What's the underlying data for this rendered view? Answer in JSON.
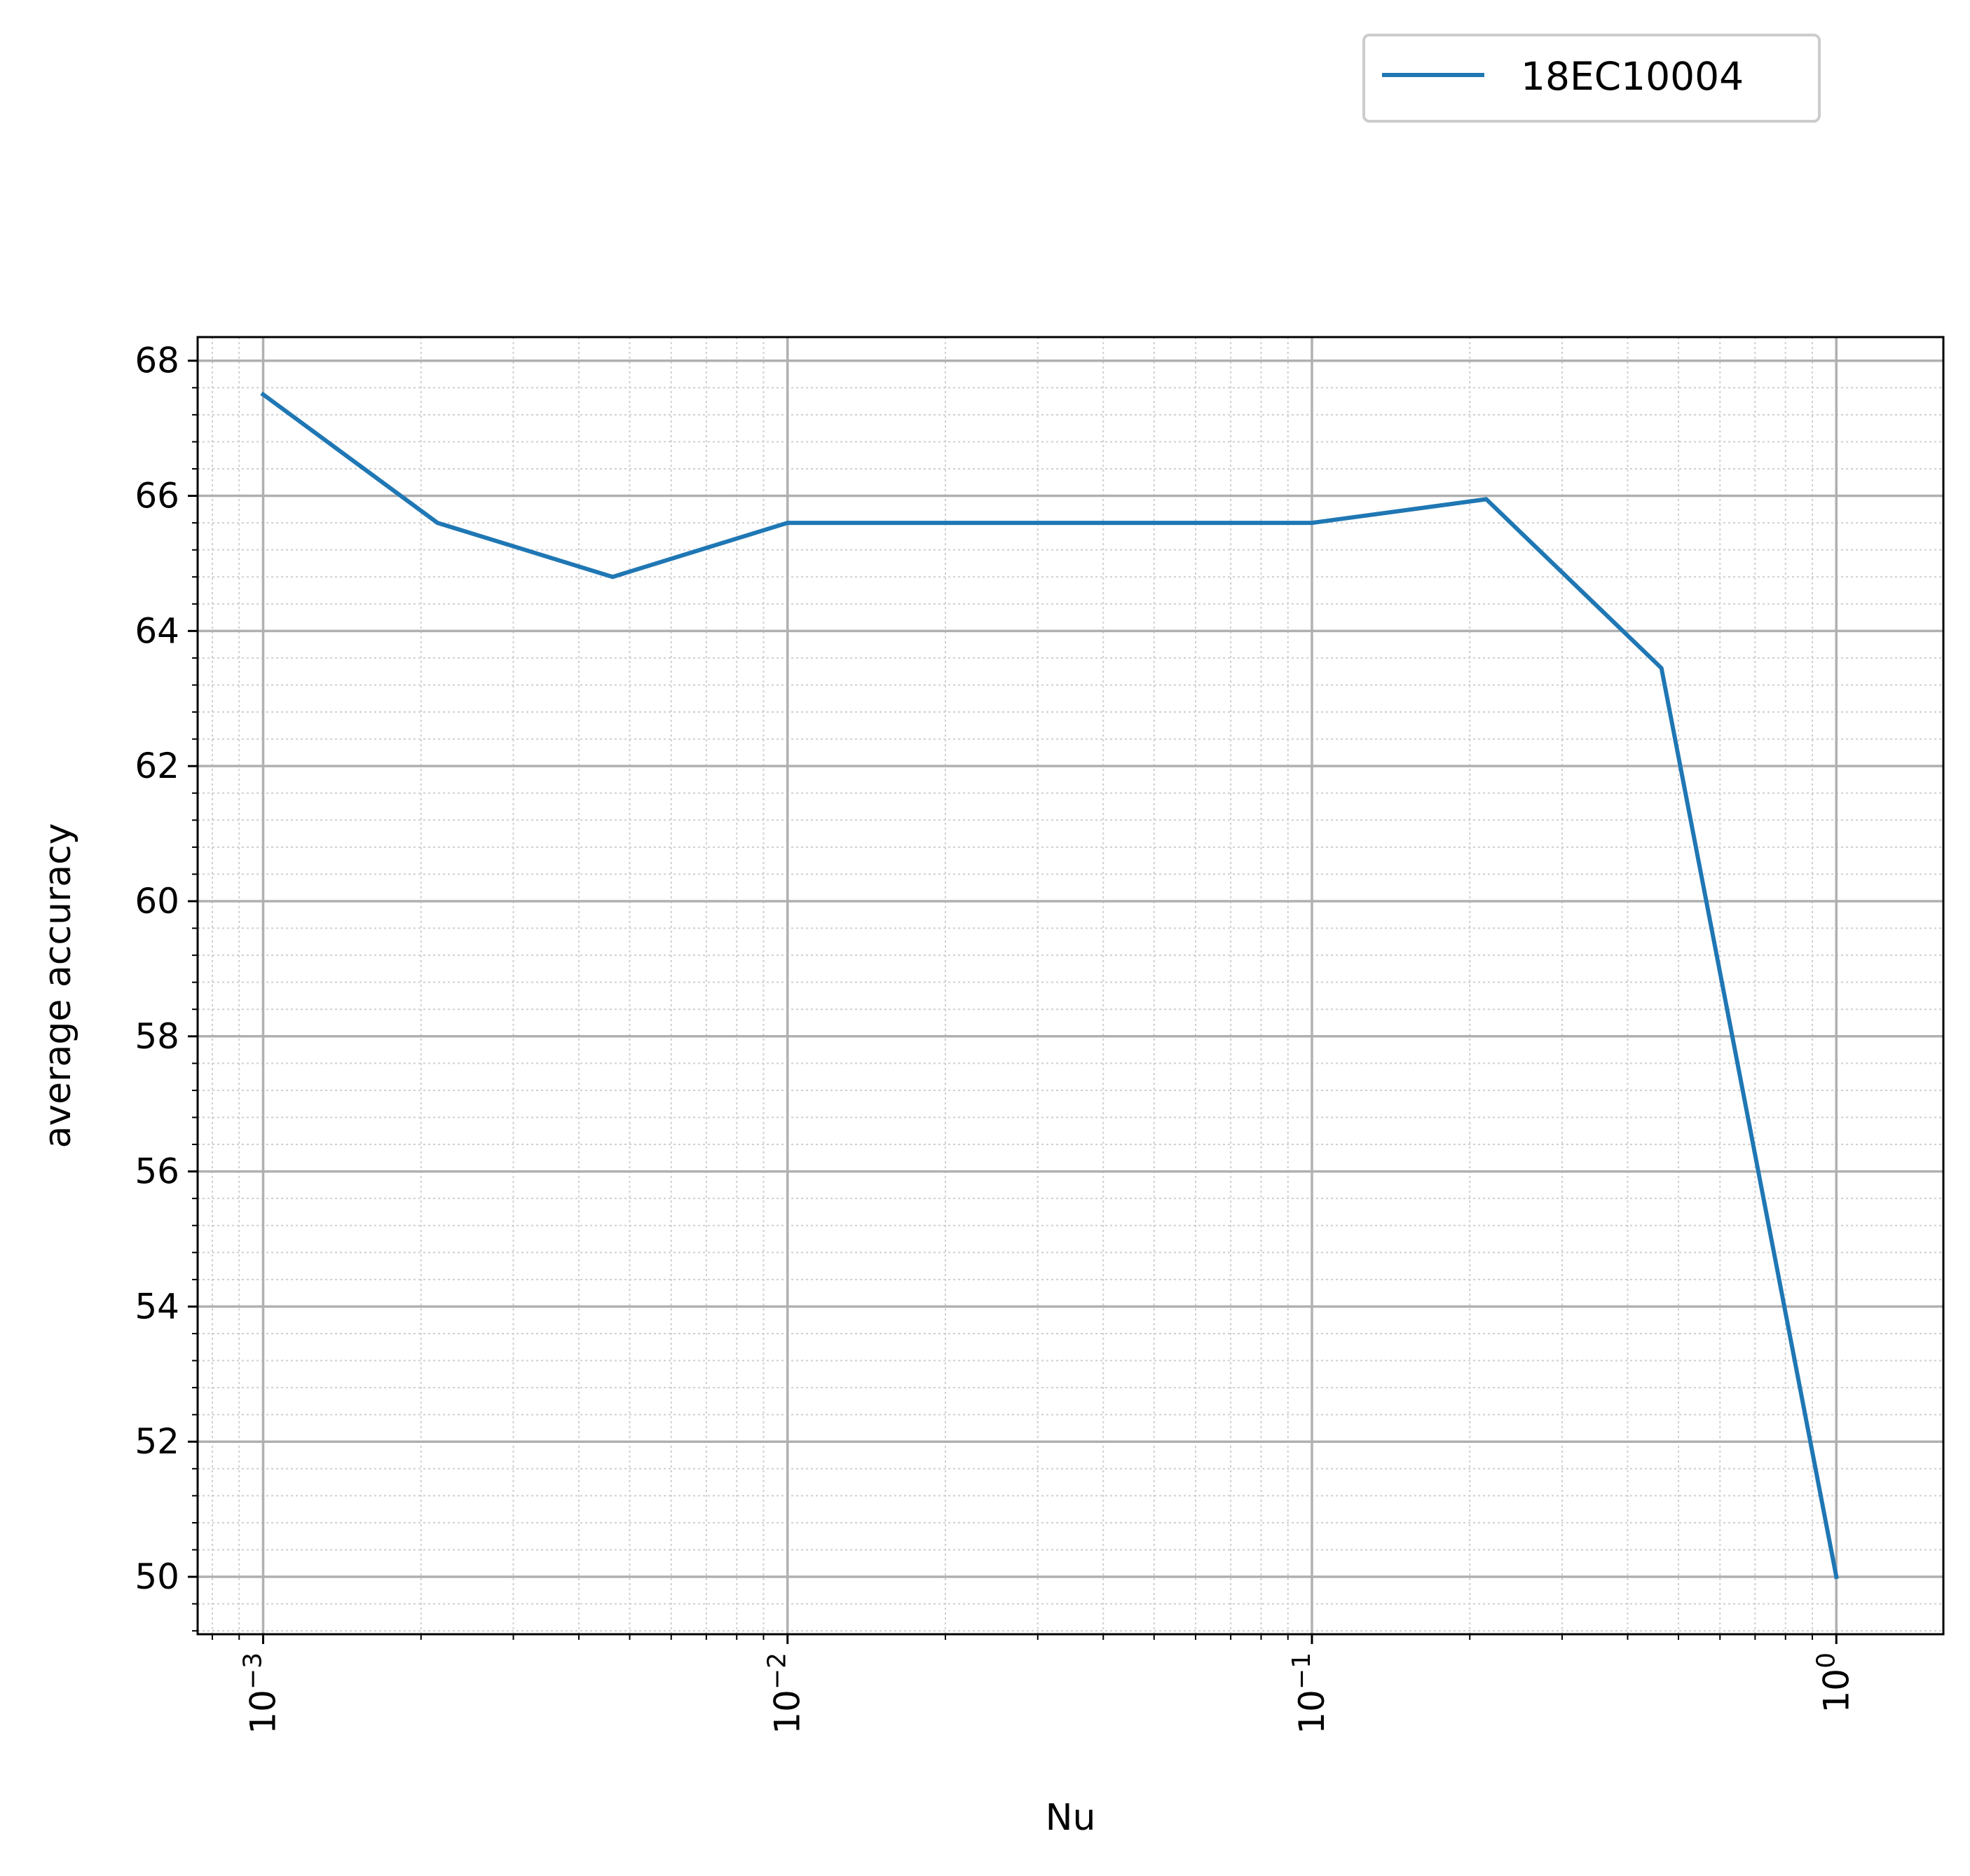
{
  "chart_data": {
    "type": "line",
    "title": "",
    "xlabel": "Nu",
    "ylabel": "average accuracy",
    "xscale": "log",
    "xlim": [
      0.00075,
      1.6
    ],
    "ylim": [
      49.15,
      68.35
    ],
    "grid": "major and minor",
    "legend_position": "top-right, above plot",
    "xticks": [
      {
        "value": 0.001,
        "base": "10",
        "exp": "−3"
      },
      {
        "value": 0.01,
        "base": "10",
        "exp": "−2"
      },
      {
        "value": 0.1,
        "base": "10",
        "exp": "−1"
      },
      {
        "value": 1,
        "base": "10",
        "exp": "0"
      }
    ],
    "yticks": [
      "50",
      "52",
      "54",
      "56",
      "58",
      "60",
      "62",
      "64",
      "66",
      "68"
    ],
    "series": [
      {
        "name": "18EC10004",
        "color": "#1f77b4",
        "x": [
          0.001,
          0.00215,
          0.00464,
          0.01,
          0.0215,
          0.0464,
          0.1,
          0.215,
          0.464,
          1.0
        ],
        "y": [
          67.5,
          65.6,
          64.8,
          65.6,
          65.6,
          65.6,
          65.6,
          65.95,
          63.45,
          50.0
        ]
      }
    ]
  }
}
